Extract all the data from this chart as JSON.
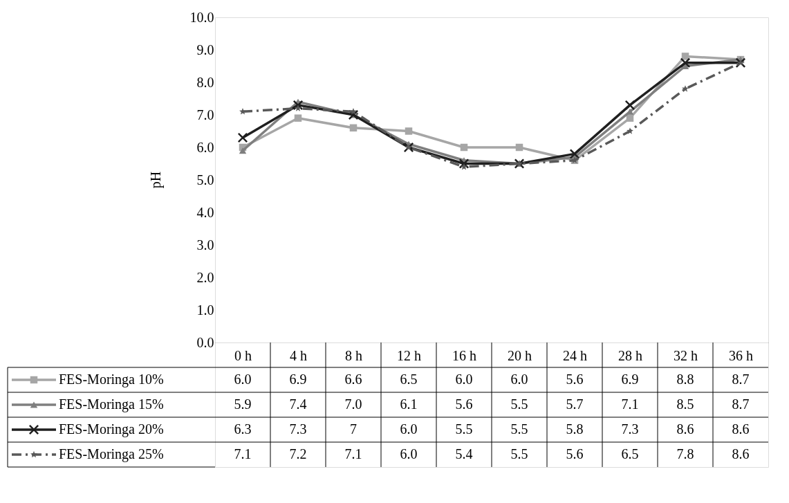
{
  "chart_data": {
    "type": "line",
    "categories": [
      "0 h",
      "4 h",
      "8 h",
      "12 h",
      "16 h",
      "20 h",
      "24 h",
      "28 h",
      "32 h",
      "36 h"
    ],
    "ylabel": "pH",
    "ylim": [
      0,
      10
    ],
    "yticks": [
      {
        "value": 0,
        "label": "0.0"
      },
      {
        "value": 1,
        "label": "1.0"
      },
      {
        "value": 2,
        "label": "2.0"
      },
      {
        "value": 3,
        "label": "3.0"
      },
      {
        "value": 4,
        "label": "4.0"
      },
      {
        "value": 5,
        "label": "5.0"
      },
      {
        "value": 6,
        "label": "6.0"
      },
      {
        "value": 7,
        "label": "7.0"
      },
      {
        "value": 8,
        "label": "8.0"
      },
      {
        "value": 9,
        "label": "9.0"
      },
      {
        "value": 10,
        "label": "10.0"
      }
    ],
    "legend": "bottom",
    "series": [
      {
        "name": "FES-Moringa 10%",
        "color": "#a6a6a6",
        "marker": "square",
        "line_style": "solid",
        "values": [
          6.0,
          6.9,
          6.6,
          6.5,
          6.0,
          6.0,
          5.6,
          6.9,
          8.8,
          8.7
        ],
        "value_labels": [
          "6.0",
          "6.9",
          "6.6",
          "6.5",
          "6.0",
          "6.0",
          "5.6",
          "6.9",
          "8.8",
          "8.7"
        ]
      },
      {
        "name": "FES-Moringa 15%",
        "color": "#7f7f7f",
        "marker": "triangle",
        "line_style": "solid",
        "values": [
          5.9,
          7.4,
          7.0,
          6.1,
          5.6,
          5.5,
          5.7,
          7.1,
          8.5,
          8.7
        ],
        "value_labels": [
          "5.9",
          "7.4",
          "7.0",
          "6.1",
          "5.6",
          "5.5",
          "5.7",
          "7.1",
          "8.5",
          "8.7"
        ]
      },
      {
        "name": "FES-Moringa 20%",
        "color": "#1f1f1f",
        "marker": "cross",
        "line_style": "solid",
        "values": [
          6.3,
          7.3,
          7,
          6.0,
          5.5,
          5.5,
          5.8,
          7.3,
          8.6,
          8.6
        ],
        "value_labels": [
          "6.3",
          "7.3",
          "7",
          "6.0",
          "5.5",
          "5.5",
          "5.8",
          "7.3",
          "8.6",
          "8.6"
        ]
      },
      {
        "name": "FES-Moringa 25%",
        "color": "#595959",
        "marker": "star",
        "line_style": "dashed",
        "values": [
          7.1,
          7.2,
          7.1,
          6.0,
          5.4,
          5.5,
          5.6,
          6.5,
          7.8,
          8.6
        ],
        "value_labels": [
          "7.1",
          "7.2",
          "7.1",
          "6.0",
          "5.4",
          "5.5",
          "5.6",
          "6.5",
          "7.8",
          "8.6"
        ]
      }
    ]
  }
}
